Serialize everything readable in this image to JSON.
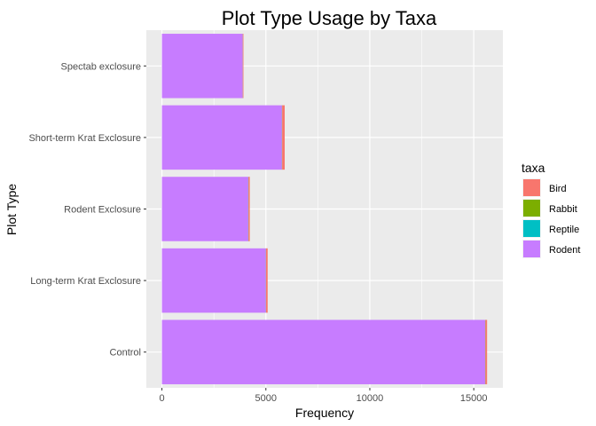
{
  "chart_data": {
    "type": "bar",
    "orientation": "horizontal",
    "stacked": true,
    "title": "Plot Type Usage by Taxa",
    "xlabel": "Frequency",
    "ylabel": "Plot Type",
    "xlim": [
      -750,
      16400
    ],
    "xticks": [
      0,
      5000,
      10000,
      15000
    ],
    "categories": [
      "Control",
      "Long-term Krat Exclosure",
      "Rodent Exclosure",
      "Short-term Krat Exclosure",
      "Spectab exclosure"
    ],
    "series": [
      {
        "name": "Bird",
        "color": "#F8766D",
        "values": [
          75,
          75,
          60,
          120,
          30
        ]
      },
      {
        "name": "Rabbit",
        "color": "#7CAE00",
        "values": [
          10,
          5,
          10,
          10,
          5
        ]
      },
      {
        "name": "Reptile",
        "color": "#00BFC4",
        "values": [
          5,
          5,
          5,
          5,
          5
        ]
      },
      {
        "name": "Rodent",
        "color": "#C77CFF",
        "values": [
          15550,
          5000,
          4150,
          5770,
          3880
        ]
      }
    ],
    "legend": {
      "title": "taxa",
      "position": "right"
    },
    "grid": true,
    "panel_background": "#EBEBEB"
  }
}
